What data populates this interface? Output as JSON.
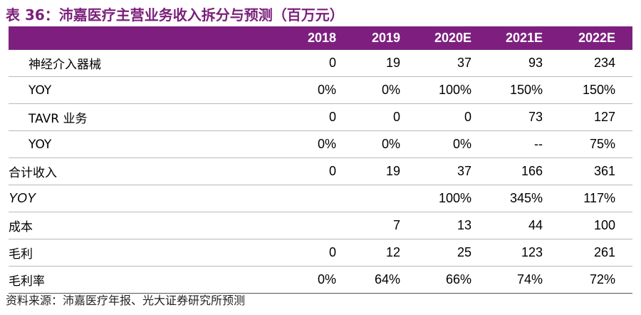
{
  "title": "表 36：沛嘉医疗主营业务收入拆分与预测（百万元）",
  "header": [
    "2018",
    "2019",
    "2020E",
    "2021E",
    "2022E"
  ],
  "rows": [
    {
      "label": "神经介入器械",
      "values": [
        "0",
        "19",
        "37",
        "93",
        "234"
      ]
    },
    {
      "label": "YOY",
      "values": [
        "0%",
        "0%",
        "100%",
        "150%",
        "150%"
      ]
    },
    {
      "label": "TAVR 业务",
      "values": [
        "0",
        "0",
        "0",
        "73",
        "127"
      ]
    },
    {
      "label": "YOY",
      "values": [
        "0%",
        "0%",
        "0%",
        "--",
        "75%"
      ]
    },
    {
      "label": "合计收入",
      "values": [
        "0",
        "19",
        "37",
        "166",
        "361"
      ]
    },
    {
      "label": "YOY",
      "values": [
        "",
        "",
        "100%",
        "345%",
        "117%"
      ]
    },
    {
      "label": "成本",
      "values": [
        "",
        "7",
        "13",
        "44",
        "100"
      ]
    },
    {
      "label": "毛利",
      "values": [
        "0",
        "12",
        "25",
        "123",
        "261"
      ]
    },
    {
      "label": "毛利率",
      "values": [
        "0%",
        "64%",
        "66%",
        "74%",
        "72%"
      ]
    }
  ],
  "source": "资料来源：沛嘉医疗年报、光大证券研究所预测"
}
